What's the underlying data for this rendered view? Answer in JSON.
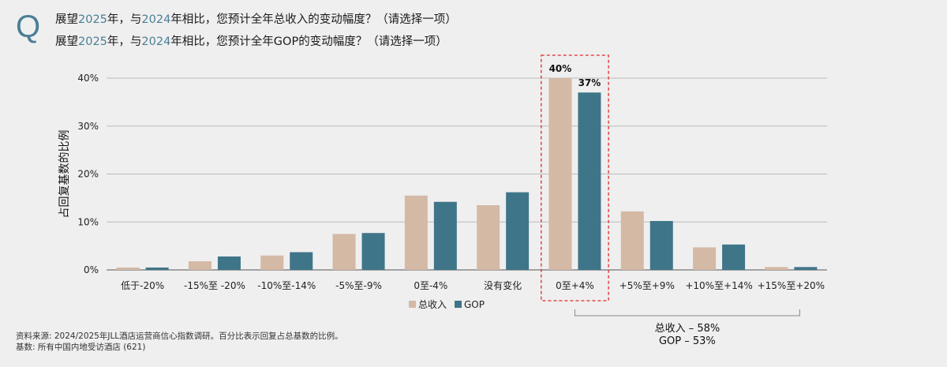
{
  "question": {
    "mark": "Q",
    "line1": {
      "p1": "展望",
      "y1": "2025",
      "p2": "年，与",
      "y2": "2024",
      "p3": "年相比，您预计全年总收入的变动幅度？（请选择一项）"
    },
    "line2": {
      "p1": "展望",
      "y1": "2025",
      "p2": "年，与",
      "y2": "2024",
      "p3": "年相比，您预计全年GOP的变动幅度？（请选择一项）"
    }
  },
  "chart_data": {
    "type": "bar",
    "ylabel": "占回复基数的比例",
    "ylim": [
      0,
      40
    ],
    "yticks": [
      0,
      10,
      20,
      30,
      40
    ],
    "ytick_labels": [
      "0%",
      "10%",
      "20%",
      "30%",
      "40%"
    ],
    "grid": true,
    "categories": [
      "低于-20%",
      "-15%至 -20%",
      "-10%至-14%",
      "-5%至-9%",
      "0至-4%",
      "没有变化",
      "0至+4%",
      "+5%至+9%",
      "+10%至+14%",
      "+15%至+20%"
    ],
    "series": [
      {
        "name": "总收入",
        "color": "#d4b9a5",
        "values": [
          0.5,
          1.8,
          3.0,
          7.5,
          15.5,
          13.5,
          40,
          12.2,
          4.7,
          0.6
        ]
      },
      {
        "name": "GOP",
        "color": "#3f7589",
        "values": [
          0.5,
          2.8,
          3.7,
          7.7,
          14.2,
          16.2,
          37,
          10.2,
          5.3,
          0.6
        ]
      }
    ],
    "data_labels": {
      "category_index": 6,
      "labels": [
        "40%",
        "37%"
      ]
    },
    "highlight_category_index": 6,
    "highlight_color": "#e0282a",
    "legend": {
      "placement": "bottom-center",
      "entries": [
        "总收入",
        "GOP"
      ]
    },
    "bracket": {
      "from_category": 6,
      "to_category": 9,
      "lines": [
        "总收入 – 58%",
        "GOP – 53%"
      ]
    }
  },
  "footnote": {
    "source": "资料来源: 2024/2025年JLL酒店运营商信心指数调研。百分比表示回复占总基数的比例。",
    "base": "基数: 所有中国内地受访酒店 (621)"
  }
}
